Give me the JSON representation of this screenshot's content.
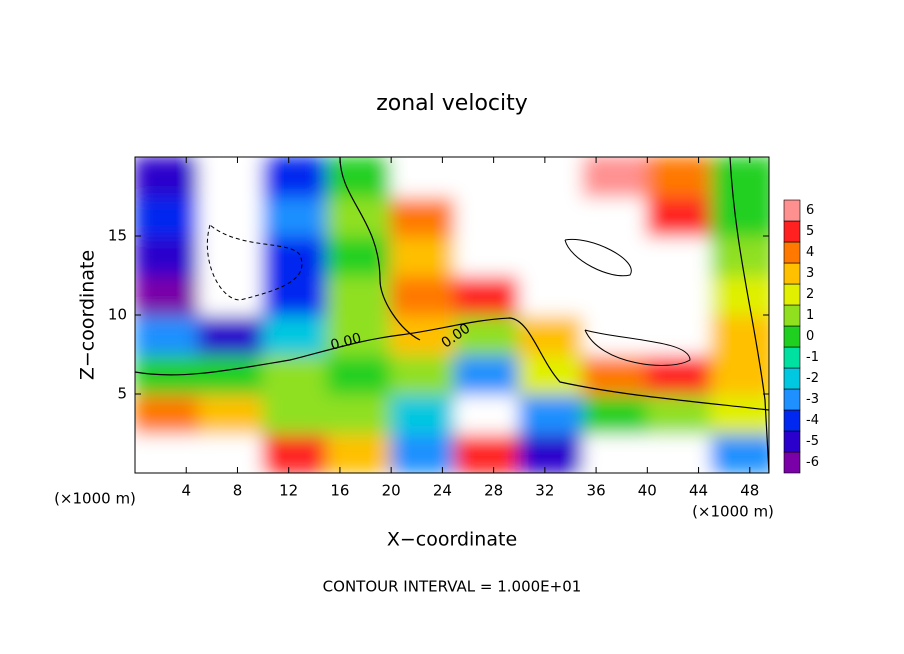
{
  "chart_data": {
    "type": "heatmap",
    "title": "zonal velocity",
    "x_label": "X−coordinate",
    "y_label": "Z−coordinate",
    "x_unit": "(×1000 m)",
    "y_unit": "(×1000 m)",
    "footnote": "CONTOUR INTERVAL = 1.000E+01",
    "contour_labels": [
      "0.00",
      "0.00"
    ],
    "x": [
      2.5,
      7.5,
      12.5,
      17.5,
      22.5,
      27.5,
      32.5,
      37.5,
      42.5,
      47.5
    ],
    "y": [
      1.25,
      3.75,
      6.25,
      8.75,
      11.25,
      13.75,
      16.25,
      18.75
    ],
    "z": [
      [
        8,
        8,
        5,
        3,
        -3,
        5,
        -5,
        8,
        8,
        -3
      ],
      [
        4,
        3,
        1,
        1,
        -2,
        8,
        -3,
        0,
        1,
        2
      ],
      [
        0,
        0,
        1,
        0,
        1,
        -3,
        2,
        4,
        5,
        3
      ],
      [
        -3,
        -5,
        -2,
        1,
        3,
        1,
        3,
        8,
        7,
        3
      ],
      [
        -6,
        -8,
        -4,
        1,
        4,
        5,
        8,
        8,
        7,
        2
      ],
      [
        -5,
        -8,
        -4,
        0,
        3,
        8,
        8,
        8,
        7,
        1
      ],
      [
        -4,
        -8,
        -3,
        1,
        4,
        8,
        8,
        8,
        5,
        0
      ],
      [
        -5,
        -8,
        -4,
        0,
        8,
        8,
        8,
        6,
        4,
        0
      ]
    ],
    "xlim": [
      0,
      49.5
    ],
    "ylim": [
      0,
      20
    ],
    "xticks": [
      4,
      8,
      12,
      16,
      20,
      24,
      28,
      32,
      36,
      40,
      44,
      48
    ],
    "yticks": [
      5,
      10,
      15
    ],
    "levels": [
      -6,
      -5,
      -4,
      -3,
      -2,
      -1,
      0,
      1,
      2,
      3,
      4,
      5,
      6
    ],
    "colors": [
      "#7a00a8",
      "#2b00cc",
      "#0028f0",
      "#1e90ff",
      "#00c8e0",
      "#00e0a0",
      "#20d020",
      "#90e020",
      "#e0f000",
      "#ffc000",
      "#ff7800",
      "#ff2020",
      "#ff9090"
    ]
  }
}
